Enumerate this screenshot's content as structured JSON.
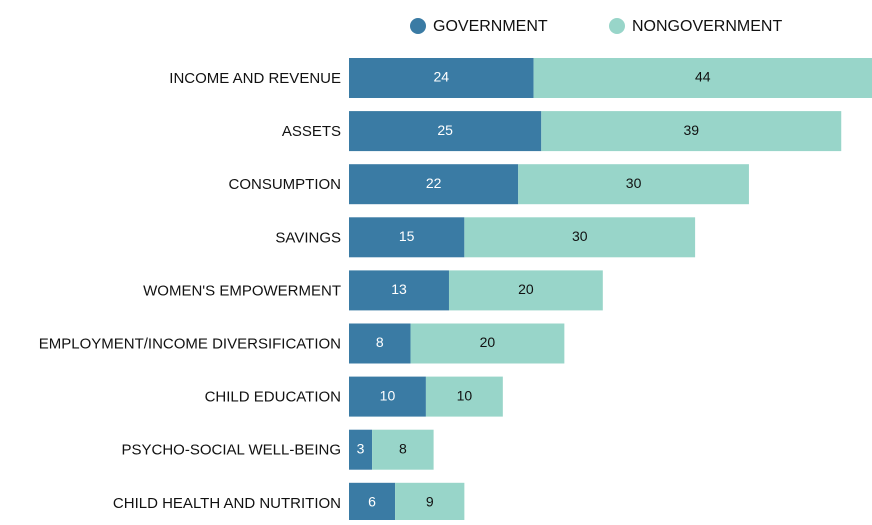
{
  "chart_data": {
    "type": "stacked-bar-horizontal",
    "categories": [
      "INCOME AND REVENUE",
      "ASSETS",
      "CONSUMPTION",
      "SAVINGS",
      "WOMEN'S EMPOWERMENT",
      "EMPLOYMENT/INCOME DIVERSIFICATION",
      "CHILD EDUCATION",
      "PSYCHO-SOCIAL WELL-BEING",
      "CHILD HEALTH AND NUTRITION"
    ],
    "series": [
      {
        "name": "GOVERNMENT",
        "color": "#3a7ba4",
        "label_color": "#ffffff",
        "values": [
          24,
          25,
          22,
          15,
          13,
          8,
          10,
          3,
          6
        ]
      },
      {
        "name": "NONGOVERNMENT",
        "color": "#98d5c9",
        "label_color": "#111111",
        "values": [
          44,
          39,
          30,
          30,
          20,
          20,
          10,
          8,
          9
        ]
      }
    ],
    "xlim": [
      0,
      68
    ],
    "legend": "top"
  }
}
